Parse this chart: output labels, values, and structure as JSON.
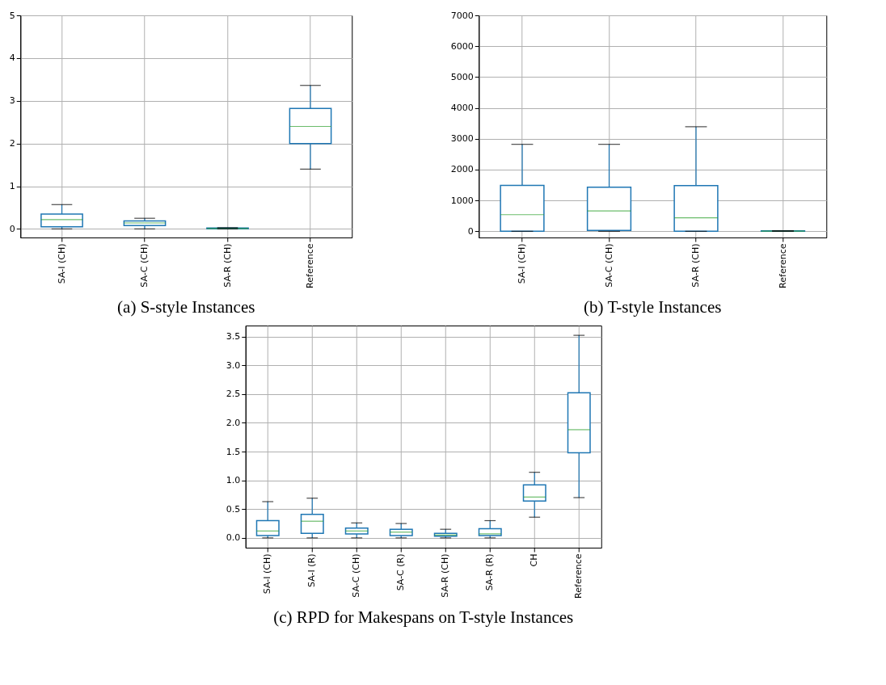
{
  "chart_data": [
    {
      "type": "box",
      "title": "(a) S-style Instances",
      "categories": [
        "SA-I (CH)",
        "SA-C (CH)",
        "SA-R (CH)",
        "Reference"
      ],
      "ylim": [
        -0.2,
        5
      ],
      "yticks": [
        0,
        1,
        2,
        3,
        4,
        5
      ],
      "grid": true,
      "series": [
        {
          "color": "#1f77b4",
          "boxes": [
            {
              "low": 0,
              "q1": 0.05,
              "median": 0.22,
              "q3": 0.35,
              "high": 0.57
            },
            {
              "low": 0,
              "q1": 0.08,
              "median": 0.14,
              "q3": 0.19,
              "high": 0.25
            },
            {
              "low": 0,
              "q1": 0.005,
              "median": 0.01,
              "q3": 0.02,
              "high": 0.03
            },
            {
              "low": 1.4,
              "q1": 2.0,
              "median": 2.4,
              "q3": 2.82,
              "high": 3.36
            }
          ]
        }
      ]
    },
    {
      "type": "box",
      "title": "(b) T-style Instances",
      "categories": [
        "SA-I (CH)",
        "SA-C (CH)",
        "SA-R (CH)",
        "Reference"
      ],
      "ylim": [
        -200,
        7000
      ],
      "yticks": [
        0,
        1000,
        2000,
        3000,
        4000,
        5000,
        6000,
        7000
      ],
      "grid": true,
      "series": [
        {
          "color": "#1f77b4",
          "boxes": [
            {
              "low": 0,
              "q1": 0,
              "median": 540,
              "q3": 1490,
              "high": 2820
            },
            {
              "low": 0,
              "q1": 30,
              "median": 660,
              "q3": 1430,
              "high": 2820
            },
            {
              "low": 0,
              "q1": 0,
              "median": 440,
              "q3": 1480,
              "high": 3390
            },
            {
              "low": 0,
              "q1": 0,
              "median": 5,
              "q3": 15,
              "high": 20
            }
          ]
        }
      ]
    },
    {
      "type": "box",
      "title": "(c) RPD for Makespans on T-style Instances",
      "categories": [
        "SA-I (CH)",
        "SA-I (R)",
        "SA-C (CH)",
        "SA-C (R)",
        "SA-R (CH)",
        "SA-R (R)",
        "CH",
        "Reference"
      ],
      "ylim": [
        -0.17,
        3.69
      ],
      "yticks": [
        {
          "value": 0,
          "label": "0.0"
        },
        0.5,
        {
          "value": 1,
          "label": "1.0"
        },
        1.5,
        {
          "value": 2,
          "label": "2.0"
        },
        2.5,
        {
          "value": 3,
          "label": "3.0"
        },
        3.5
      ],
      "grid": true,
      "series": [
        {
          "color": "#1f77b4",
          "boxes": [
            {
              "low": 0,
              "q1": 0.04,
              "median": 0.12,
              "q3": 0.3,
              "high": 0.63
            },
            {
              "low": 0,
              "q1": 0.08,
              "median": 0.29,
              "q3": 0.41,
              "high": 0.69
            },
            {
              "low": 0,
              "q1": 0.07,
              "median": 0.12,
              "q3": 0.17,
              "high": 0.26
            },
            {
              "low": 0,
              "q1": 0.04,
              "median": 0.1,
              "q3": 0.15,
              "high": 0.25
            },
            {
              "low": 0,
              "q1": 0.03,
              "median": 0.05,
              "q3": 0.08,
              "high": 0.15
            },
            {
              "low": 0,
              "q1": 0.04,
              "median": 0.07,
              "q3": 0.16,
              "high": 0.3
            },
            {
              "low": 0.36,
              "q1": 0.64,
              "median": 0.71,
              "q3": 0.92,
              "high": 1.14
            },
            {
              "low": 0.7,
              "q1": 1.48,
              "median": 1.88,
              "q3": 2.52,
              "high": 3.52
            }
          ]
        }
      ]
    }
  ]
}
